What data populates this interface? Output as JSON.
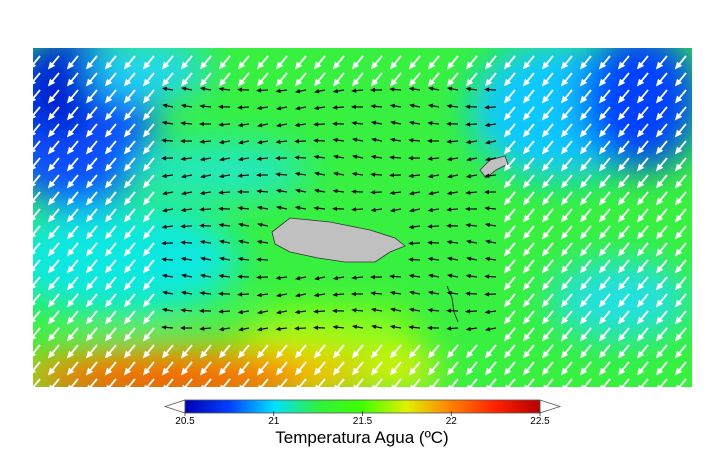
{
  "colorbar": {
    "label": "Temperatura Agua (ºC)",
    "lim": [
      20.5,
      22.5
    ],
    "ticks": [
      20.5,
      21,
      21.5,
      22,
      22.5
    ],
    "colors": [
      "#0000b4",
      "#0040ff",
      "#00e0ff",
      "#30f040",
      "#40ff00",
      "#e0f000",
      "#ff8000",
      "#ff2000",
      "#b40000"
    ]
  }
}
